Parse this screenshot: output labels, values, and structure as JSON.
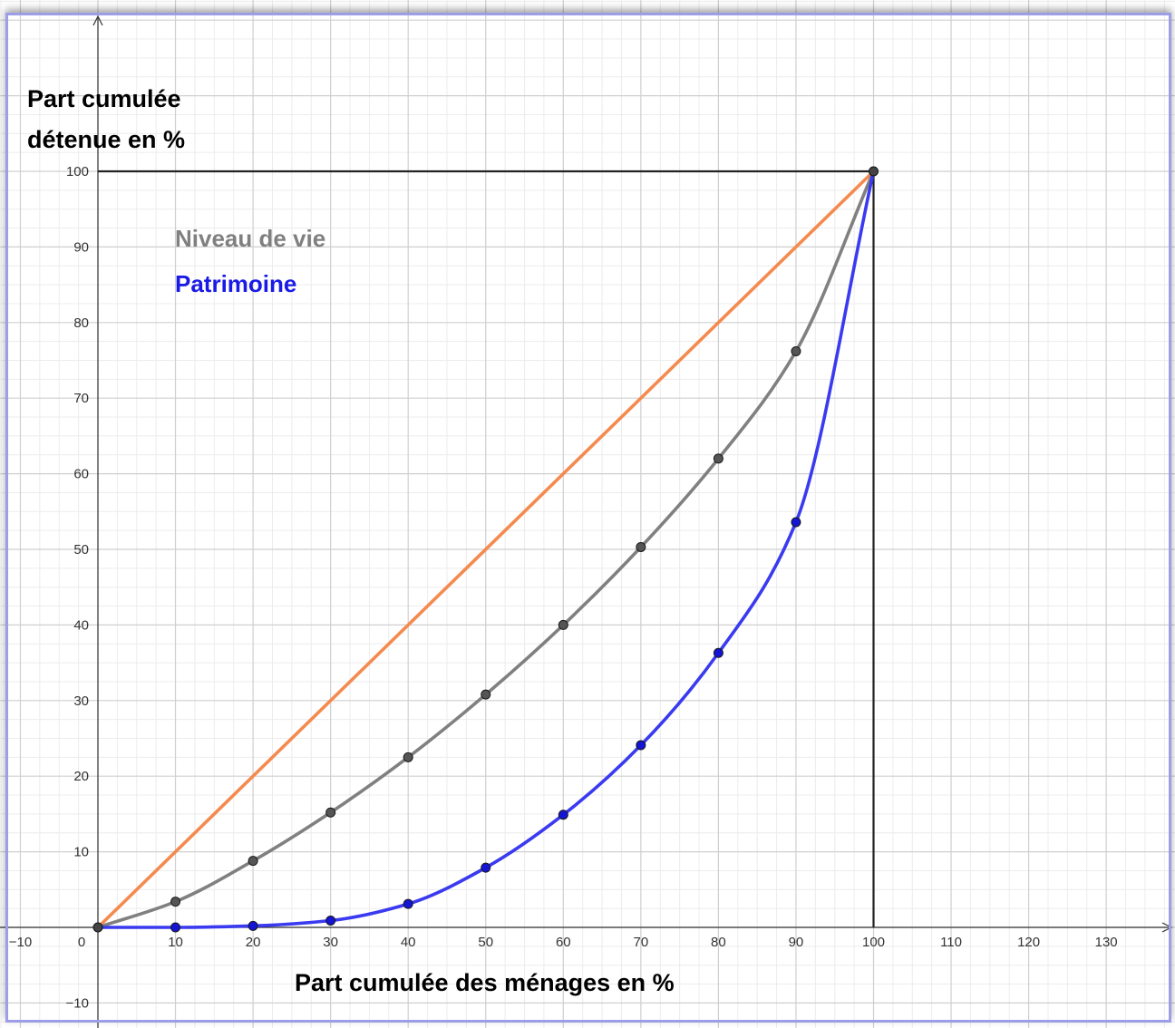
{
  "chart_data": {
    "type": "line",
    "ylabel_line1": "Part cumulée",
    "ylabel_line2": "détenue en %",
    "xlabel": "Part cumulée des ménages en %",
    "xlim": [
      -11,
      139
    ],
    "ylim": [
      -13,
      120
    ],
    "x_ticks": [
      -10,
      0,
      10,
      20,
      30,
      40,
      50,
      60,
      70,
      80,
      90,
      100,
      110,
      120,
      130
    ],
    "y_ticks": [
      -10,
      10,
      20,
      30,
      40,
      50,
      60,
      70,
      80,
      90,
      100
    ],
    "grid": true,
    "box": {
      "x": [
        0,
        100
      ],
      "y": [
        0,
        100
      ]
    },
    "equality_line": {
      "x": [
        0,
        100
      ],
      "y": [
        0,
        100
      ],
      "color": "#f58a4f"
    },
    "legend_position": "top-left",
    "series": [
      {
        "name": "Niveau de vie",
        "color": "#808080",
        "point_color": "#555555",
        "x": [
          0,
          10,
          20,
          30,
          40,
          50,
          60,
          70,
          80,
          90,
          100
        ],
        "y": [
          0,
          3.4,
          8.8,
          15.2,
          22.5,
          30.8,
          40.0,
          50.3,
          62.0,
          76.2,
          100
        ]
      },
      {
        "name": "Patrimoine",
        "color": "#3a3af0",
        "point_color": "#1414d4",
        "x": [
          0,
          10,
          20,
          30,
          40,
          50,
          60,
          70,
          80,
          90,
          100
        ],
        "y": [
          0,
          0.0,
          0.2,
          0.9,
          3.1,
          7.9,
          14.9,
          24.1,
          36.3,
          53.6,
          100
        ]
      }
    ]
  }
}
